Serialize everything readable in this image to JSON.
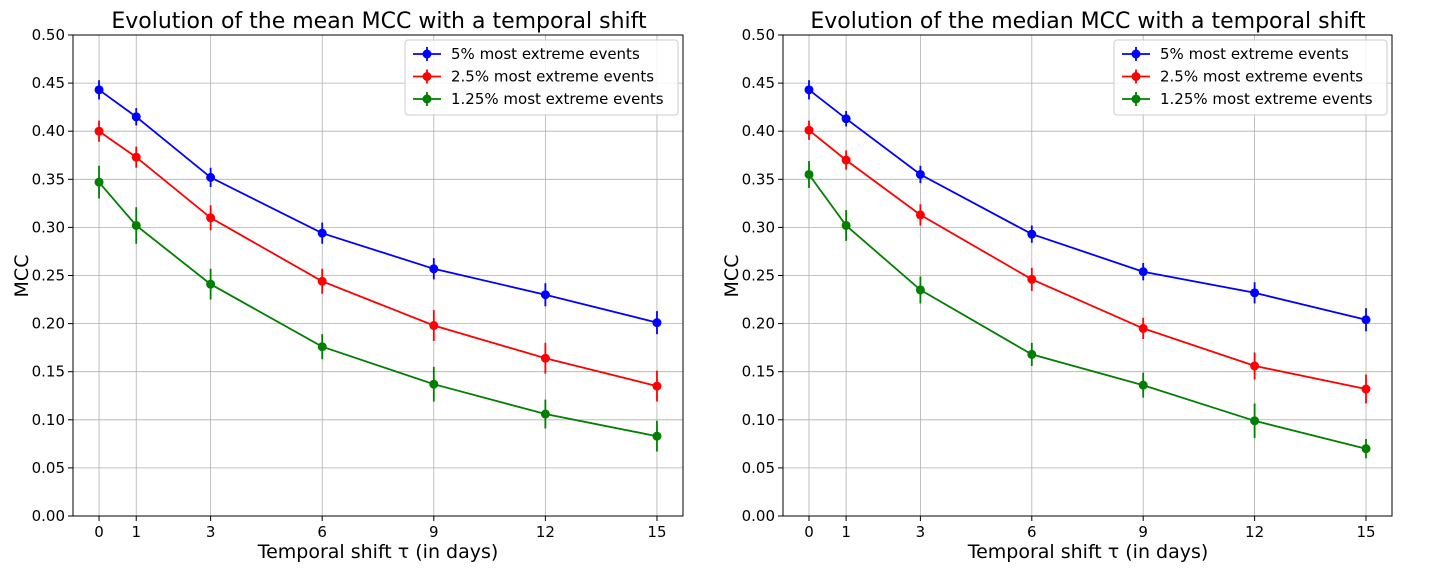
{
  "chart_data": [
    {
      "type": "line",
      "title": "Evolution of the mean MCC with a temporal shift",
      "xlabel": "Temporal shift τ (in days)",
      "ylabel": "MCC",
      "xlim": [
        -0.7,
        15.7
      ],
      "ylim": [
        0,
        0.5
      ],
      "xticks": [
        0,
        1,
        3,
        6,
        9,
        12,
        15
      ],
      "yticks": [
        "0.00",
        "0.05",
        "0.10",
        "0.15",
        "0.20",
        "0.25",
        "0.30",
        "0.35",
        "0.40",
        "0.45",
        "0.50"
      ],
      "grid": true,
      "legend_position": "top-right",
      "x": [
        0,
        1,
        3,
        6,
        9,
        12,
        15
      ],
      "series": [
        {
          "name": "5% most extreme events",
          "color": "#0000ff",
          "values": [
            0.443,
            0.415,
            0.352,
            0.294,
            0.257,
            0.23,
            0.201
          ],
          "errors": [
            0.01,
            0.009,
            0.01,
            0.011,
            0.011,
            0.012,
            0.012
          ]
        },
        {
          "name": "2.5% most extreme events",
          "color": "#ff0000",
          "values": [
            0.4,
            0.373,
            0.31,
            0.244,
            0.198,
            0.164,
            0.135
          ],
          "errors": [
            0.011,
            0.011,
            0.013,
            0.013,
            0.016,
            0.016,
            0.016
          ]
        },
        {
          "name": "1.25% most extreme events",
          "color": "#007f00",
          "values": [
            0.347,
            0.302,
            0.241,
            0.176,
            0.137,
            0.106,
            0.083
          ],
          "errors": [
            0.017,
            0.019,
            0.016,
            0.013,
            0.018,
            0.015,
            0.016
          ]
        }
      ]
    },
    {
      "type": "line",
      "title": "Evolution of the median MCC with a temporal shift",
      "xlabel": "Temporal shift τ (in days)",
      "ylabel": "MCC",
      "xlim": [
        -0.7,
        15.7
      ],
      "ylim": [
        0,
        0.5
      ],
      "xticks": [
        0,
        1,
        3,
        6,
        9,
        12,
        15
      ],
      "yticks": [
        "0.00",
        "0.05",
        "0.10",
        "0.15",
        "0.20",
        "0.25",
        "0.30",
        "0.35",
        "0.40",
        "0.45",
        "0.50"
      ],
      "grid": true,
      "legend_position": "top-right",
      "x": [
        0,
        1,
        3,
        6,
        9,
        12,
        15
      ],
      "series": [
        {
          "name": "5% most extreme events",
          "color": "#0000ff",
          "values": [
            0.443,
            0.413,
            0.355,
            0.293,
            0.254,
            0.232,
            0.204
          ],
          "errors": [
            0.01,
            0.008,
            0.009,
            0.009,
            0.009,
            0.011,
            0.012
          ]
        },
        {
          "name": "2.5% most extreme events",
          "color": "#ff0000",
          "values": [
            0.401,
            0.37,
            0.313,
            0.246,
            0.195,
            0.156,
            0.132
          ],
          "errors": [
            0.01,
            0.01,
            0.011,
            0.012,
            0.011,
            0.014,
            0.015
          ]
        },
        {
          "name": "1.25% most extreme events",
          "color": "#007f00",
          "values": [
            0.355,
            0.302,
            0.235,
            0.168,
            0.136,
            0.099,
            0.07
          ],
          "errors": [
            0.014,
            0.016,
            0.014,
            0.012,
            0.013,
            0.018,
            0.01
          ]
        }
      ]
    }
  ]
}
